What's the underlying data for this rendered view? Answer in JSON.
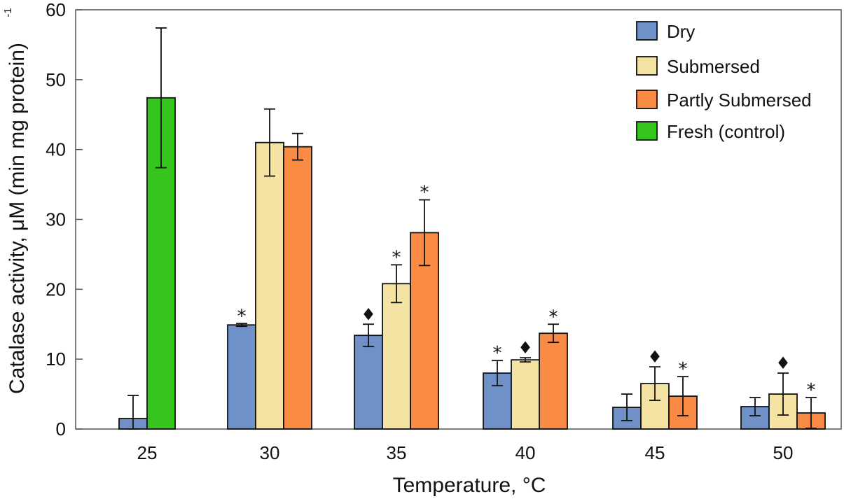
{
  "chart_data": {
    "type": "bar",
    "title": "",
    "xlabel": "Temperature, °C",
    "ylabel": "Catalase activity, μM (min mg protein)",
    "ylabel_superscript": "-1",
    "ylim": [
      0,
      60
    ],
    "yticks": [
      "0",
      "10",
      "20",
      "30",
      "40",
      "50",
      "60"
    ],
    "categories": [
      "25",
      "30",
      "35",
      "40",
      "45",
      "50"
    ],
    "legend_position": "top-right",
    "series": [
      {
        "name": "Dry",
        "color": "#7090c8",
        "values": [
          1.5,
          14.9,
          13.4,
          8.0,
          3.1,
          3.2
        ],
        "errors": [
          3.3,
          0.2,
          1.6,
          1.8,
          1.9,
          1.3
        ],
        "markers": [
          "",
          "*",
          "♦",
          "*",
          "",
          ""
        ]
      },
      {
        "name": "Submersed",
        "color": "#f5e3a4",
        "values": [
          null,
          41.0,
          20.8,
          9.9,
          6.5,
          5.0
        ],
        "errors": [
          null,
          4.8,
          2.7,
          0.3,
          2.4,
          3.0
        ],
        "markers": [
          "",
          "",
          "*",
          "♦",
          "♦",
          "♦"
        ]
      },
      {
        "name": "Partly Submersed",
        "color": "#f98b44",
        "values": [
          null,
          40.4,
          28.1,
          13.7,
          4.7,
          2.3
        ],
        "errors": [
          null,
          1.9,
          4.7,
          1.3,
          2.8,
          2.2
        ],
        "markers": [
          "",
          "",
          "*",
          "*",
          "*",
          "*"
        ]
      },
      {
        "name": "Fresh (control)",
        "color": "#35c51e",
        "values": [
          47.4,
          null,
          null,
          null,
          null,
          null
        ],
        "errors": [
          10.0,
          null,
          null,
          null,
          null,
          null
        ],
        "markers": [
          "",
          "",
          "",
          "",
          "",
          ""
        ]
      }
    ]
  }
}
